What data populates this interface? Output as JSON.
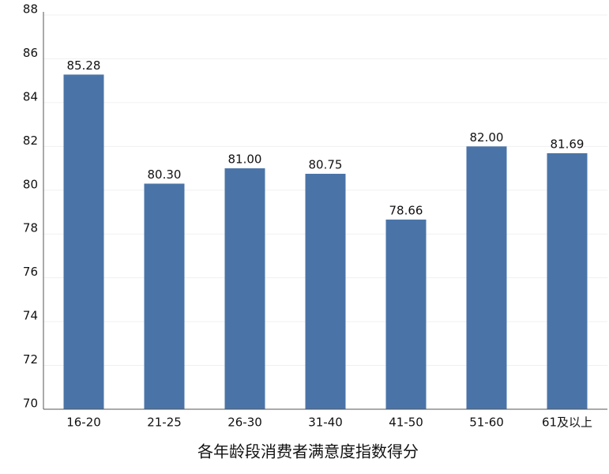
{
  "chart_data": {
    "type": "bar",
    "title": "各年龄段消费者满意度指数得分",
    "categories": [
      "16-20",
      "21-25",
      "26-30",
      "31-40",
      "41-50",
      "51-60",
      "61及以上"
    ],
    "values": [
      85.28,
      80.3,
      81.0,
      80.75,
      78.66,
      82.0,
      81.69
    ],
    "value_labels": [
      "85.28",
      "80.30",
      "81.00",
      "80.75",
      "78.66",
      "82.00",
      "81.69"
    ],
    "color": "#4a74a8",
    "ylim": [
      70,
      88
    ],
    "yticks": [
      70,
      72,
      74,
      76,
      78,
      80,
      82,
      84,
      86,
      88
    ],
    "grid": true
  }
}
